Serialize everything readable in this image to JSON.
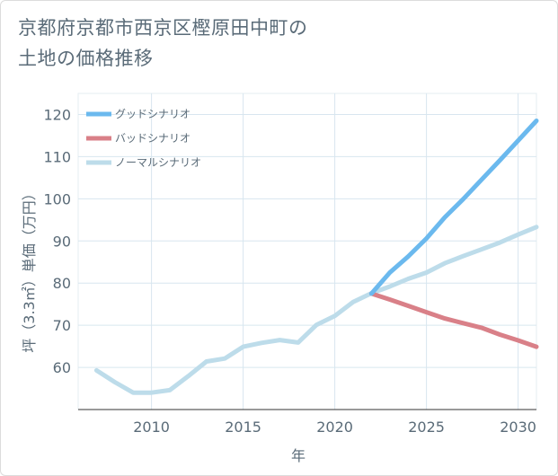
{
  "title_line1": "京都府京都市西京区樫原田中町の",
  "title_line2": "土地の価格推移",
  "chart_data": {
    "type": "line",
    "xlabel": "年",
    "ylabel": "坪（3.3㎡）単価（万円）",
    "xlim": [
      2006,
      2031
    ],
    "ylim": [
      50,
      125
    ],
    "x_ticks": [
      2010,
      2015,
      2020,
      2025,
      2030
    ],
    "y_ticks": [
      60,
      70,
      80,
      90,
      100,
      110,
      120
    ],
    "grid": true,
    "legend_position": "top-left",
    "series": [
      {
        "name": "グッドシナリオ",
        "color": "#6bb9ee",
        "x": [
          2022,
          2023,
          2024,
          2025,
          2026,
          2027,
          2028,
          2029,
          2030,
          2031
        ],
        "values": [
          77.5,
          82.5,
          86.3,
          90.6,
          95.6,
          99.9,
          104.5,
          109.1,
          113.8,
          118.5
        ]
      },
      {
        "name": "バッドシナリオ",
        "color": "#d98088",
        "x": [
          2022,
          2023,
          2024,
          2025,
          2026,
          2027,
          2028,
          2029,
          2030,
          2031
        ],
        "values": [
          77.5,
          76.1,
          74.6,
          73.1,
          71.6,
          70.5,
          69.4,
          67.8,
          66.4,
          64.9
        ]
      },
      {
        "name": "ノーマルシナリオ",
        "color": "#bddcea",
        "x": [
          2007,
          2008,
          2009,
          2010,
          2011,
          2012,
          2013,
          2014,
          2015,
          2016,
          2017,
          2018,
          2019,
          2020,
          2021,
          2022,
          2023,
          2024,
          2025,
          2026,
          2027,
          2028,
          2029,
          2030,
          2031
        ],
        "values": [
          59.3,
          56.5,
          54.0,
          54.0,
          54.6,
          57.9,
          61.4,
          62.1,
          64.9,
          65.8,
          66.5,
          65.9,
          70.1,
          72.2,
          75.5,
          77.6,
          79.2,
          81.0,
          82.5,
          84.7,
          86.4,
          88.0,
          89.6,
          91.5,
          93.3
        ]
      }
    ]
  }
}
